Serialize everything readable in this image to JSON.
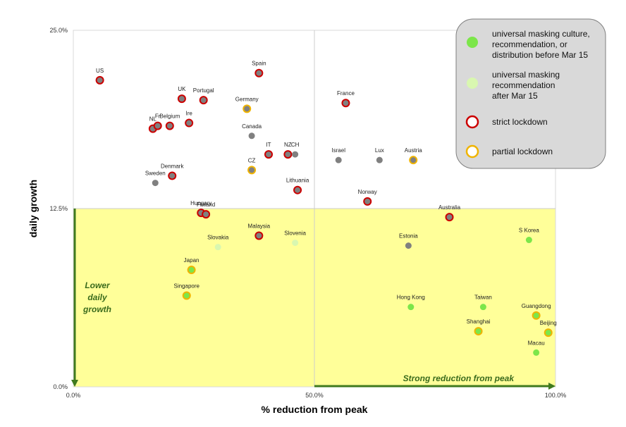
{
  "chart_data": {
    "type": "scatter",
    "xlabel": "% reduction from peak",
    "ylabel": "daily growth",
    "xlim": [
      0,
      100
    ],
    "ylim": [
      0,
      25
    ],
    "x_ticks": [
      "0.0%",
      "50.0%",
      "100.0%"
    ],
    "y_ticks": [
      "0.0%",
      "12.5%",
      "25.0%"
    ],
    "grid": "quadrant lines at x=50% and y=12.5%",
    "highlight_region": {
      "x": [
        0,
        100
      ],
      "y": [
        0,
        12.5
      ],
      "color": "#ffff99"
    },
    "annotations": {
      "lower_growth": [
        "Lower",
        "daily",
        "growth"
      ],
      "strong_reduction": "Strong reduction from peak"
    },
    "legend": {
      "placement": "top-right",
      "entries": [
        {
          "key": "early_mask",
          "lines": [
            "universal masking culture,",
            "recommendation, or",
            "distribution before Mar 15"
          ]
        },
        {
          "key": "late_mask",
          "lines": [
            "universal masking",
            "recommendation",
            "after Mar 15"
          ]
        },
        {
          "key": "strict",
          "lines": [
            "strict lockdown"
          ]
        },
        {
          "key": "partial",
          "lines": [
            "partial lockdown"
          ]
        }
      ]
    },
    "colors": {
      "early_mask": "#7ce64a",
      "late_mask": "#d9f7b0",
      "none": "#808080",
      "strict_ring": "#cc0000",
      "partial_ring": "#f0b400",
      "arrow": "#3f7a1e"
    },
    "points": [
      {
        "label": "US",
        "x": 5.5,
        "y": 21.5,
        "fill": "none",
        "ring": "strict"
      },
      {
        "label": "Spain",
        "x": 38.5,
        "y": 22.0,
        "fill": "none",
        "ring": "strict"
      },
      {
        "label": "UK",
        "x": 22.5,
        "y": 20.2,
        "fill": "none",
        "ring": "strict"
      },
      {
        "label": "Portugal",
        "x": 27.0,
        "y": 20.1,
        "fill": "none",
        "ring": "strict"
      },
      {
        "label": "Germany",
        "x": 36.0,
        "y": 19.5,
        "fill": "none",
        "ring": "partial"
      },
      {
        "label": "Canada",
        "x": 37.0,
        "y": 17.6,
        "fill": "none",
        "ring": "none"
      },
      {
        "label": "France",
        "x": 56.5,
        "y": 19.9,
        "fill": "none",
        "ring": "strict"
      },
      {
        "label": "NL",
        "x": 16.5,
        "y": 18.1,
        "fill": "none",
        "ring": "strict"
      },
      {
        "label": "Fr",
        "x": 17.5,
        "y": 18.3,
        "fill": "none",
        "ring": "strict"
      },
      {
        "label": "Belgium",
        "x": 20.0,
        "y": 18.3,
        "fill": "none",
        "ring": "strict"
      },
      {
        "label": "Ire",
        "x": 24.0,
        "y": 18.5,
        "fill": "none",
        "ring": "strict"
      },
      {
        "label": "IT",
        "x": 40.5,
        "y": 16.3,
        "fill": "none",
        "ring": "strict"
      },
      {
        "label": "NZ",
        "x": 44.5,
        "y": 16.3,
        "fill": "none",
        "ring": "strict"
      },
      {
        "label": "CH",
        "x": 46.0,
        "y": 16.3,
        "fill": "none",
        "ring": "none"
      },
      {
        "label": "Israel",
        "x": 55.0,
        "y": 15.9,
        "fill": "none",
        "ring": "none"
      },
      {
        "label": "Lux",
        "x": 63.5,
        "y": 15.9,
        "fill": "none",
        "ring": "none"
      },
      {
        "label": "Austria",
        "x": 70.5,
        "y": 15.9,
        "fill": "none",
        "ring": "partial"
      },
      {
        "label": "CZ",
        "x": 37.0,
        "y": 15.2,
        "fill": "none",
        "ring": "partial"
      },
      {
        "label": "Denmark",
        "x": 20.5,
        "y": 14.8,
        "fill": "none",
        "ring": "strict"
      },
      {
        "label": "Sweden",
        "x": 17.0,
        "y": 14.3,
        "fill": "none",
        "ring": "none"
      },
      {
        "label": "Lithuania",
        "x": 46.5,
        "y": 13.8,
        "fill": "none",
        "ring": "strict"
      },
      {
        "label": "Norway",
        "x": 61.0,
        "y": 13.0,
        "fill": "none",
        "ring": "strict"
      },
      {
        "label": "Australia",
        "x": 78.0,
        "y": 11.9,
        "fill": "none",
        "ring": "strict"
      },
      {
        "label": "Hungary",
        "x": 26.5,
        "y": 12.2,
        "fill": "none",
        "ring": "strict"
      },
      {
        "label": "Finland",
        "x": 27.5,
        "y": 12.1,
        "fill": "none",
        "ring": "strict"
      },
      {
        "label": "Malaysia",
        "x": 38.5,
        "y": 10.6,
        "fill": "none",
        "ring": "strict"
      },
      {
        "label": "Slovakia",
        "x": 30.0,
        "y": 9.8,
        "fill": "late_mask",
        "ring": "none"
      },
      {
        "label": "Slovenia",
        "x": 46.0,
        "y": 10.1,
        "fill": "late_mask",
        "ring": "none"
      },
      {
        "label": "S Korea",
        "x": 94.5,
        "y": 10.3,
        "fill": "early_mask",
        "ring": "none"
      },
      {
        "label": "Estonia",
        "x": 69.5,
        "y": 9.9,
        "fill": "none",
        "ring": "none"
      },
      {
        "label": "Japan",
        "x": 24.5,
        "y": 8.2,
        "fill": "early_mask",
        "ring": "partial"
      },
      {
        "label": "Singapore",
        "x": 23.5,
        "y": 6.4,
        "fill": "early_mask",
        "ring": "partial"
      },
      {
        "label": "Hong Kong",
        "x": 70.0,
        "y": 5.6,
        "fill": "early_mask",
        "ring": "none"
      },
      {
        "label": "Taiwan",
        "x": 85.0,
        "y": 5.6,
        "fill": "early_mask",
        "ring": "none"
      },
      {
        "label": "Guangdong",
        "x": 96.0,
        "y": 5.0,
        "fill": "early_mask",
        "ring": "partial"
      },
      {
        "label": "Shanghai",
        "x": 84.0,
        "y": 3.9,
        "fill": "early_mask",
        "ring": "partial"
      },
      {
        "label": "Beijing",
        "x": 98.5,
        "y": 3.8,
        "fill": "early_mask",
        "ring": "partial"
      },
      {
        "label": "Macau",
        "x": 96.0,
        "y": 2.4,
        "fill": "early_mask",
        "ring": "none"
      }
    ]
  }
}
